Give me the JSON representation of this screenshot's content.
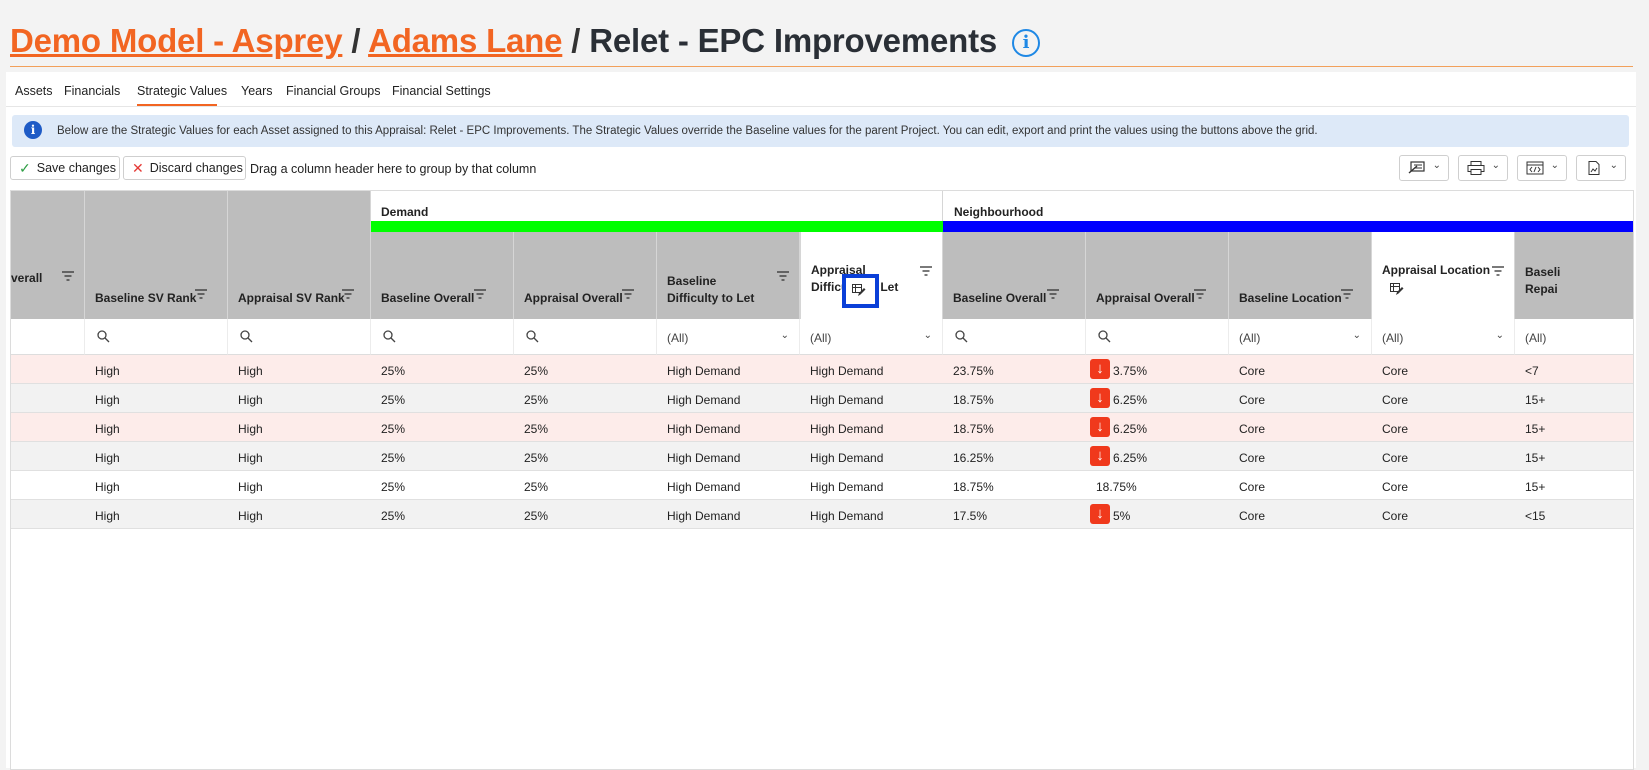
{
  "breadcrumb": {
    "model": "Demo Model - Asprey",
    "sep1": "/",
    "asset": "Adams Lane",
    "sep2": "/",
    "current": "Relet - EPC Improvements",
    "info_icon": "info-icon"
  },
  "tabs": [
    "Assets",
    "Financials",
    "Strategic Values",
    "Years",
    "Financial Groups",
    "Financial Settings"
  ],
  "active_tab": "Strategic Values",
  "info_banner": "Below are the Strategic Values for each Asset assigned to this Appraisal: Relet - EPC Improvements. The Strategic Values override the Baseline values for the parent Project. You can edit, export and print the values using the buttons above the grid.",
  "toolbar": {
    "save_label": "Save changes",
    "discard_label": "Discard changes",
    "group_hint": "Drag a column header here to group by that column",
    "icons": [
      "column-chooser-icon",
      "print-icon",
      "export-code-icon",
      "export-file-icon"
    ]
  },
  "bands": {
    "demand": {
      "label": "Demand",
      "color": "#00ff00"
    },
    "neighbourhood": {
      "label": "Neighbourhood",
      "color": "#0000ff"
    }
  },
  "columns": {
    "c0": "verall",
    "c1": "Baseline SV Rank",
    "c2": "Appraisal SV Rank",
    "c3": "Baseline Overall",
    "c4": "Appraisal Overall",
    "c5": "Baseline Difficulty to Let",
    "c6": "Appraisal Difficulty to Let",
    "c7": "Baseline Overall",
    "c8": "Appraisal Overall",
    "c9": "Baseline Location",
    "c10": "Appraisal Location",
    "c11": "Baseli Repai"
  },
  "filters": {
    "all": "(All)"
  },
  "rows": [
    {
      "c1": "High",
      "c2": "High",
      "c3": "25%",
      "c4": "25%",
      "c5": "High Demand",
      "c6": "High Demand",
      "c7": "23.75%",
      "c8": "3.75%",
      "c8_down": true,
      "c9": "Core",
      "c10": "Core",
      "c11": "<7",
      "bg": "#fdecea"
    },
    {
      "c1": "High",
      "c2": "High",
      "c3": "25%",
      "c4": "25%",
      "c5": "High Demand",
      "c6": "High Demand",
      "c7": "18.75%",
      "c8": "6.25%",
      "c8_down": true,
      "c9": "Core",
      "c10": "Core",
      "c11": "15+",
      "bg": "#f2f2f2"
    },
    {
      "c1": "High",
      "c2": "High",
      "c3": "25%",
      "c4": "25%",
      "c5": "High Demand",
      "c6": "High Demand",
      "c7": "18.75%",
      "c8": "6.25%",
      "c8_down": true,
      "c9": "Core",
      "c10": "Core",
      "c11": "15+",
      "bg": "#fdecea"
    },
    {
      "c1": "High",
      "c2": "High",
      "c3": "25%",
      "c4": "25%",
      "c5": "High Demand",
      "c6": "High Demand",
      "c7": "16.25%",
      "c8": "6.25%",
      "c8_down": true,
      "c9": "Core",
      "c10": "Core",
      "c11": "15+",
      "bg": "#f2f2f2"
    },
    {
      "c1": "High",
      "c2": "High",
      "c3": "25%",
      "c4": "25%",
      "c5": "High Demand",
      "c6": "High Demand",
      "c7": "18.75%",
      "c8": "18.75%",
      "c8_down": false,
      "c9": "Core",
      "c10": "Core",
      "c11": "15+",
      "bg": "#ffffff"
    },
    {
      "c1": "High",
      "c2": "High",
      "c3": "25%",
      "c4": "25%",
      "c5": "High Demand",
      "c6": "High Demand",
      "c7": "17.5%",
      "c8": "5%",
      "c8_down": true,
      "c9": "Core",
      "c10": "Core",
      "c11": "<15",
      "bg": "#f2f2f2"
    }
  ]
}
